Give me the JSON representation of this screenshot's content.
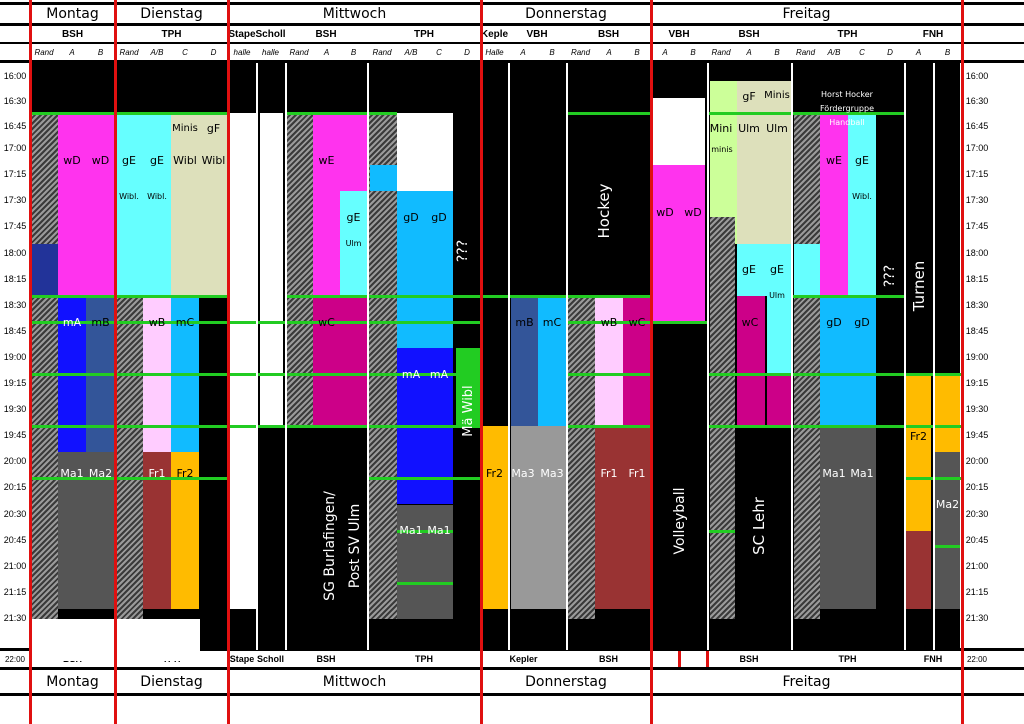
{
  "days_top": [
    "Montag",
    "Dienstag",
    "Mittwoch",
    "Donnerstag",
    "Freitag"
  ],
  "days_bottom": [
    "Montag",
    "Dienstag",
    "Mittwoch",
    "Donnerstag",
    "Freitag"
  ],
  "halls_top": [
    {
      "key": "bsh1",
      "label": "BSH"
    },
    {
      "key": "tph1",
      "label": "TPH"
    },
    {
      "key": "stap",
      "label": "Stape"
    },
    {
      "key": "scholl",
      "label": "Scholl"
    },
    {
      "key": "bsh2",
      "label": "BSH"
    },
    {
      "key": "tph2",
      "label": "TPH"
    },
    {
      "key": "kepl",
      "label": "Keple"
    },
    {
      "key": "vbh1",
      "label": "VBH"
    },
    {
      "key": "bsh3",
      "label": "BSH"
    },
    {
      "key": "vbh2",
      "label": "VBH"
    },
    {
      "key": "bsh4",
      "label": "BSH"
    },
    {
      "key": "tph3",
      "label": "TPH"
    },
    {
      "key": "fnh",
      "label": "FNH"
    }
  ],
  "halls_bottom": [
    {
      "key": "b_bsh1",
      "label": "BSH"
    },
    {
      "key": "b_tph1",
      "label": "TPH"
    },
    {
      "key": "b_stap",
      "label": "Stape"
    },
    {
      "key": "b_scholl",
      "label": "Scholl"
    },
    {
      "key": "b_bsh2",
      "label": "BSH"
    },
    {
      "key": "b_tph2",
      "label": "TPH"
    },
    {
      "key": "b_kepl",
      "label": "Kepler"
    },
    {
      "key": "b_bsh3",
      "label": "BSH"
    },
    {
      "key": "b_bsh4",
      "label": "BSH"
    },
    {
      "key": "b_tph3",
      "label": "TPH"
    },
    {
      "key": "b_fnh",
      "label": "FNH"
    }
  ],
  "sub_labels": {
    "rand": "Rand",
    "a": "A",
    "b": "B",
    "ab": "A/B",
    "c": "C",
    "d": "D",
    "halle": "halle",
    "halle_cap": "Halle"
  },
  "times": [
    "16:00",
    "16:30",
    "16:45",
    "17:00",
    "17:15",
    "17:30",
    "17:45",
    "18:00",
    "18:15",
    "18:30",
    "18:45",
    "19:00",
    "19:15",
    "19:30",
    "19:45",
    "20:00",
    "20:15",
    "20:30",
    "20:45",
    "21:00",
    "21:15",
    "21:30"
  ],
  "time_end": "22:00",
  "blocks": {
    "wD": "wD",
    "wE": "wE",
    "gE": "gE",
    "gD": "gD",
    "Ulm": "Ulm",
    "Wibl": "Wibl",
    "Wibl_dot": "Wibl.",
    "Minis": "Minis",
    "gF": "gF",
    "mA": "mA",
    "mB": "mB",
    "wB": "wB",
    "mC": "mC",
    "wC": "wC",
    "Ma1": "Ma1",
    "Ma2": "Ma2",
    "Ma3": "Ma3",
    "Fr1": "Fr1",
    "Fr2": "Fr2",
    "Mini": "Mini",
    "minis": "minis",
    "qqq": "???",
    "hockey": "Hockey",
    "volleyball": "Volleyball",
    "sclehr": "SC Lehr",
    "turnen": "Turnen",
    "mawibl": "Mä Wibl",
    "sg_line1": "SG Burlafingen/",
    "sg_line2": "Post SV Ulm",
    "horst1": "Horst Hocker",
    "horst2": "Fördergruppe",
    "horst3": "Handball"
  },
  "colors": {
    "magenta": "#ff33ee",
    "cyan": "#66ffff",
    "beige": "#dde0bb",
    "lightgreen": "#ccff99",
    "skyblue": "#11bbff",
    "blue": "#1111ff",
    "steel": "#335599",
    "navy": "#223399",
    "pink": "#ffccff",
    "crimson": "#cc0088",
    "darkred": "#993333",
    "orange": "#ffbb00",
    "grey": "#555555",
    "lightgrey": "#999999",
    "green": "#22cc22",
    "red": "#e01010"
  }
}
